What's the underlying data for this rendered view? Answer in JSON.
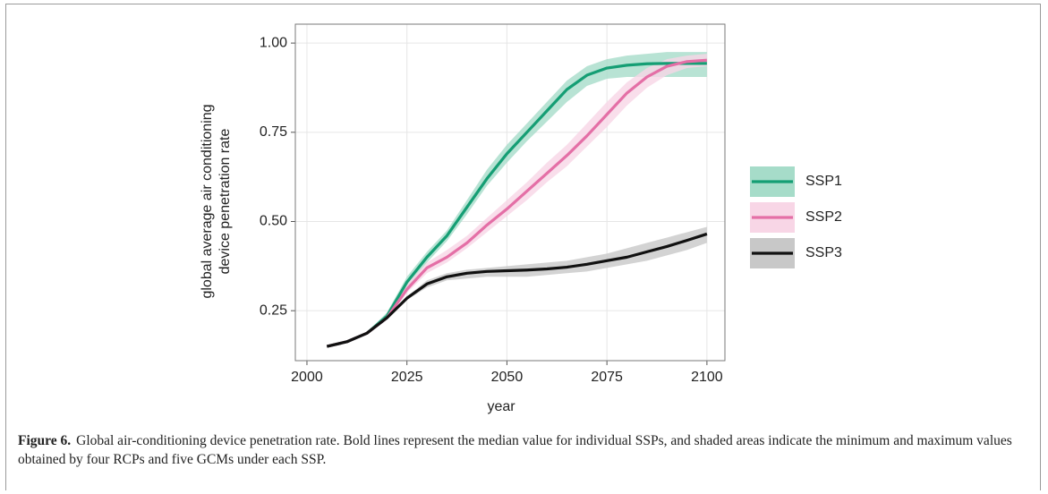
{
  "chart_data": {
    "type": "line",
    "xlabel": "year",
    "ylabel": [
      "global average air conditioning",
      "device penetration rate"
    ],
    "x": [
      2005,
      2010,
      2015,
      2020,
      2025,
      2030,
      2035,
      2040,
      2045,
      2050,
      2055,
      2060,
      2065,
      2070,
      2075,
      2080,
      2085,
      2090,
      2095,
      2100
    ],
    "series": [
      {
        "name": "SSP1",
        "color": "#159e74",
        "band_color": "#a6dcc9",
        "values": [
          0.15,
          0.163,
          0.187,
          0.235,
          0.33,
          0.4,
          0.46,
          0.54,
          0.62,
          0.69,
          0.75,
          0.81,
          0.87,
          0.91,
          0.93,
          0.938,
          0.942,
          0.943,
          0.943,
          0.943
        ],
        "lower": [
          0.148,
          0.161,
          0.185,
          0.225,
          0.31,
          0.385,
          0.445,
          0.52,
          0.6,
          0.665,
          0.725,
          0.78,
          0.835,
          0.88,
          0.9,
          0.905,
          0.905,
          0.905,
          0.905,
          0.905
        ],
        "upper": [
          0.152,
          0.165,
          0.189,
          0.245,
          0.345,
          0.415,
          0.475,
          0.56,
          0.645,
          0.715,
          0.775,
          0.835,
          0.895,
          0.935,
          0.955,
          0.965,
          0.97,
          0.975,
          0.975,
          0.975
        ]
      },
      {
        "name": "SSP2",
        "color": "#e46fa6",
        "band_color": "#f8d6e6",
        "values": [
          0.15,
          0.163,
          0.187,
          0.23,
          0.31,
          0.37,
          0.4,
          0.44,
          0.49,
          0.535,
          0.585,
          0.635,
          0.685,
          0.74,
          0.8,
          0.86,
          0.905,
          0.935,
          0.948,
          0.952
        ],
        "lower": [
          0.148,
          0.161,
          0.185,
          0.225,
          0.3,
          0.355,
          0.385,
          0.425,
          0.47,
          0.515,
          0.56,
          0.61,
          0.655,
          0.71,
          0.765,
          0.825,
          0.875,
          0.91,
          0.93,
          0.935
        ],
        "upper": [
          0.152,
          0.165,
          0.189,
          0.24,
          0.325,
          0.385,
          0.42,
          0.46,
          0.51,
          0.56,
          0.61,
          0.665,
          0.715,
          0.775,
          0.835,
          0.89,
          0.93,
          0.955,
          0.965,
          0.97
        ]
      },
      {
        "name": "SSP3",
        "color": "#111111",
        "band_color": "#c8c8c8",
        "values": [
          0.15,
          0.163,
          0.187,
          0.23,
          0.285,
          0.325,
          0.345,
          0.355,
          0.36,
          0.362,
          0.364,
          0.367,
          0.372,
          0.38,
          0.39,
          0.4,
          0.415,
          0.43,
          0.447,
          0.465
        ],
        "lower": [
          0.148,
          0.161,
          0.185,
          0.225,
          0.28,
          0.315,
          0.335,
          0.34,
          0.345,
          0.345,
          0.345,
          0.35,
          0.355,
          0.36,
          0.37,
          0.38,
          0.39,
          0.405,
          0.42,
          0.44
        ],
        "upper": [
          0.152,
          0.165,
          0.189,
          0.235,
          0.29,
          0.335,
          0.355,
          0.365,
          0.37,
          0.375,
          0.38,
          0.385,
          0.39,
          0.4,
          0.41,
          0.425,
          0.44,
          0.455,
          0.47,
          0.485
        ]
      }
    ],
    "xlim": [
      1997.1,
      2104.5
    ],
    "xticks": [
      2000,
      2025,
      2050,
      2075,
      2100
    ],
    "ylim": [
      0.11,
      1.053
    ],
    "yticks": [
      0.25,
      {
        "value": 0.5,
        "label": "0.50"
      },
      0.75,
      {
        "value": 1.0,
        "label": "1.00"
      }
    ],
    "grid": true
  },
  "caption": {
    "label": "Figure 6.",
    "text": "Global air-conditioning device penetration rate. Bold lines represent the median value for individual SSPs, and shaded areas indicate the minimum and maximum values obtained by four RCPs and five GCMs under each SSP."
  }
}
